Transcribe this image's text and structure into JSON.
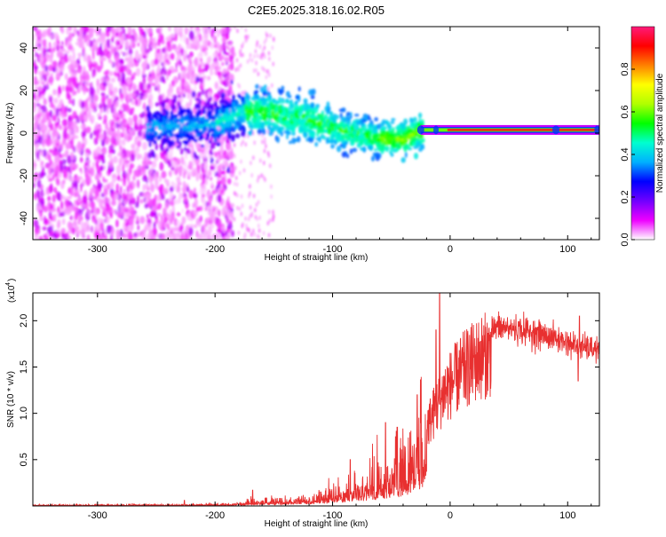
{
  "title": "C2E5.2025.318.16.02.R05",
  "chart_data": [
    {
      "type": "heatmap",
      "name": "spectrogram",
      "xlabel": "Height of straight line (km)",
      "ylabel": "Frequency (Hz)",
      "xlim": [
        -355,
        127
      ],
      "ylim": [
        -50,
        50
      ],
      "xticks": [
        {
          "v": -300,
          "t": "-300"
        },
        {
          "v": -200,
          "t": "-200"
        },
        {
          "v": -100,
          "t": "-100"
        },
        {
          "v": 0,
          "t": "0"
        },
        {
          "v": 100,
          "t": "100"
        }
      ],
      "yticks": [
        {
          "v": -40,
          "t": "-40"
        },
        {
          "v": -20,
          "t": "-20"
        },
        {
          "v": 0,
          "t": "0"
        },
        {
          "v": 20,
          "t": "20"
        },
        {
          "v": 40,
          "t": "40"
        }
      ],
      "colorbar": {
        "label": "Normalized spectral amplitude",
        "range": [
          0,
          1
        ],
        "ticks": [
          {
            "v": 0,
            "t": "0.0"
          },
          {
            "v": 0.2,
            "t": "0.2"
          },
          {
            "v": 0.4,
            "t": "0.4"
          },
          {
            "v": 0.6,
            "t": "0.6"
          },
          {
            "v": 0.8,
            "t": "0.8"
          }
        ],
        "stops": [
          "#ffffff",
          "#ee00ff",
          "#7000ff",
          "#0000ff",
          "#00b0ff",
          "#00ffd0",
          "#00ff00",
          "#b0ff00",
          "#ffff00",
          "#ff8000",
          "#ff0000",
          "#ff1a7a"
        ]
      },
      "ridge": [
        {
          "x": -250,
          "y": 3
        },
        {
          "x": -200,
          "y": 4
        },
        {
          "x": -175,
          "y": 10
        },
        {
          "x": -150,
          "y": 9
        },
        {
          "x": -120,
          "y": 6
        },
        {
          "x": -90,
          "y": 1
        },
        {
          "x": -60,
          "y": -3
        },
        {
          "x": -40,
          "y": -3
        },
        {
          "x": -25,
          "y": 1
        },
        {
          "x": 0,
          "y": 1.5
        },
        {
          "x": 127,
          "y": 1.5
        }
      ]
    },
    {
      "type": "line",
      "name": "snr",
      "color": "#e83030",
      "xlabel": "Height of straight line (km)",
      "ylabel": "SNR (10 * v/v)",
      "yscale_label": "(x10",
      "yscale_exp": "4",
      "xlim": [
        -355,
        127
      ],
      "ylim": [
        0,
        2.3
      ],
      "xticks": [
        {
          "v": -300,
          "t": "-300"
        },
        {
          "v": -200,
          "t": "-200"
        },
        {
          "v": -100,
          "t": "-100"
        },
        {
          "v": 0,
          "t": "0"
        },
        {
          "v": 100,
          "t": "100"
        }
      ],
      "yticks": [
        {
          "v": 0.5,
          "t": "0.5"
        },
        {
          "v": 1.0,
          "t": "1.0"
        },
        {
          "v": 1.5,
          "t": "1.5"
        },
        {
          "v": 2.0,
          "t": "2.0"
        }
      ],
      "envelope": [
        {
          "x": -355,
          "y": 0.01
        },
        {
          "x": -240,
          "y": 0.012
        },
        {
          "x": -185,
          "y": 0.02
        },
        {
          "x": -170,
          "y": 0.05
        },
        {
          "x": -140,
          "y": 0.06
        },
        {
          "x": -110,
          "y": 0.1
        },
        {
          "x": -90,
          "y": 0.18
        },
        {
          "x": -70,
          "y": 0.28
        },
        {
          "x": -50,
          "y": 0.4
        },
        {
          "x": -35,
          "y": 0.55
        },
        {
          "x": -25,
          "y": 0.85
        },
        {
          "x": -15,
          "y": 1.15
        },
        {
          "x": -5,
          "y": 1.45
        },
        {
          "x": 10,
          "y": 1.7
        },
        {
          "x": 25,
          "y": 1.88
        },
        {
          "x": 40,
          "y": 1.97
        },
        {
          "x": 60,
          "y": 1.94
        },
        {
          "x": 80,
          "y": 1.88
        },
        {
          "x": 100,
          "y": 1.8
        },
        {
          "x": 108,
          "y": 1.76
        },
        {
          "x": 127,
          "y": 1.72
        }
      ],
      "spikes": [
        {
          "x": -226,
          "y": 0.06
        },
        {
          "x": -168,
          "y": 0.17
        },
        {
          "x": -85,
          "y": 0.5
        },
        {
          "x": -55,
          "y": 0.9
        },
        {
          "x": -45,
          "y": 0.85
        },
        {
          "x": -28,
          "y": 1.2
        },
        {
          "x": -12,
          "y": 1.9
        },
        {
          "x": -9,
          "y": 2.3
        },
        {
          "x": 110,
          "y": 2.05
        },
        {
          "x": 109,
          "y": 1.35
        }
      ]
    }
  ]
}
